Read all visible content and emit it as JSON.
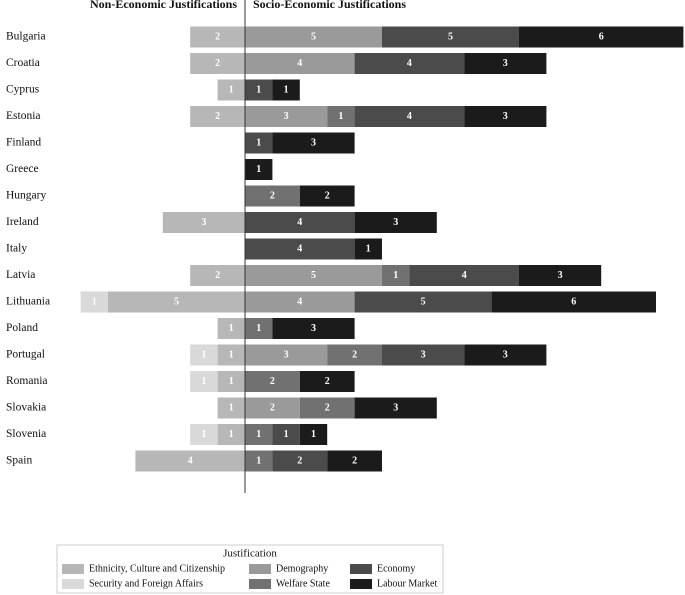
{
  "chart_data": {
    "type": "diverging-bar",
    "categories": [
      "Bulgaria",
      "Croatia",
      "Cyprus",
      "Estonia",
      "Finland",
      "Greece",
      "Hungary",
      "Ireland",
      "Italy",
      "Latvia",
      "Lithuania",
      "Poland",
      "Portugal",
      "Romania",
      "Slovakia",
      "Slovenia",
      "Spain"
    ],
    "legend_title": "Justification",
    "groups": [
      {
        "title": "Non-Economic Justifications",
        "series": [
          {
            "name": "Ethnicity, Culture and Citizenship",
            "color": "#b7b7b7",
            "values": [
              2,
              2,
              1,
              2,
              null,
              null,
              null,
              3,
              null,
              2,
              5,
              1,
              1,
              1,
              1,
              1,
              4
            ]
          },
          {
            "name": "Security and Foreign Affairs",
            "color": "#d9d9d9",
            "values": [
              null,
              null,
              null,
              null,
              null,
              null,
              null,
              null,
              null,
              null,
              1,
              null,
              1,
              1,
              null,
              1,
              null
            ]
          }
        ]
      },
      {
        "title": "Socio-Economic Justifications",
        "series": [
          {
            "name": "Demography",
            "color": "#9a9a9a",
            "values": [
              5,
              4,
              null,
              3,
              null,
              null,
              null,
              null,
              null,
              5,
              4,
              null,
              3,
              null,
              2,
              null,
              null
            ]
          },
          {
            "name": "Welfare State",
            "color": "#717171",
            "values": [
              null,
              null,
              null,
              1,
              null,
              null,
              2,
              null,
              null,
              1,
              null,
              1,
              2,
              2,
              2,
              1,
              1
            ]
          },
          {
            "name": "Economy",
            "color": "#4b4b4b",
            "values": [
              5,
              4,
              1,
              4,
              1,
              null,
              null,
              4,
              4,
              4,
              5,
              null,
              3,
              null,
              null,
              1,
              2
            ]
          },
          {
            "name": "Labour Market",
            "color": "#1b1b1b",
            "values": [
              6,
              3,
              1,
              3,
              3,
              1,
              2,
              3,
              1,
              3,
              6,
              3,
              3,
              2,
              3,
              1,
              2
            ]
          }
        ]
      }
    ]
  }
}
